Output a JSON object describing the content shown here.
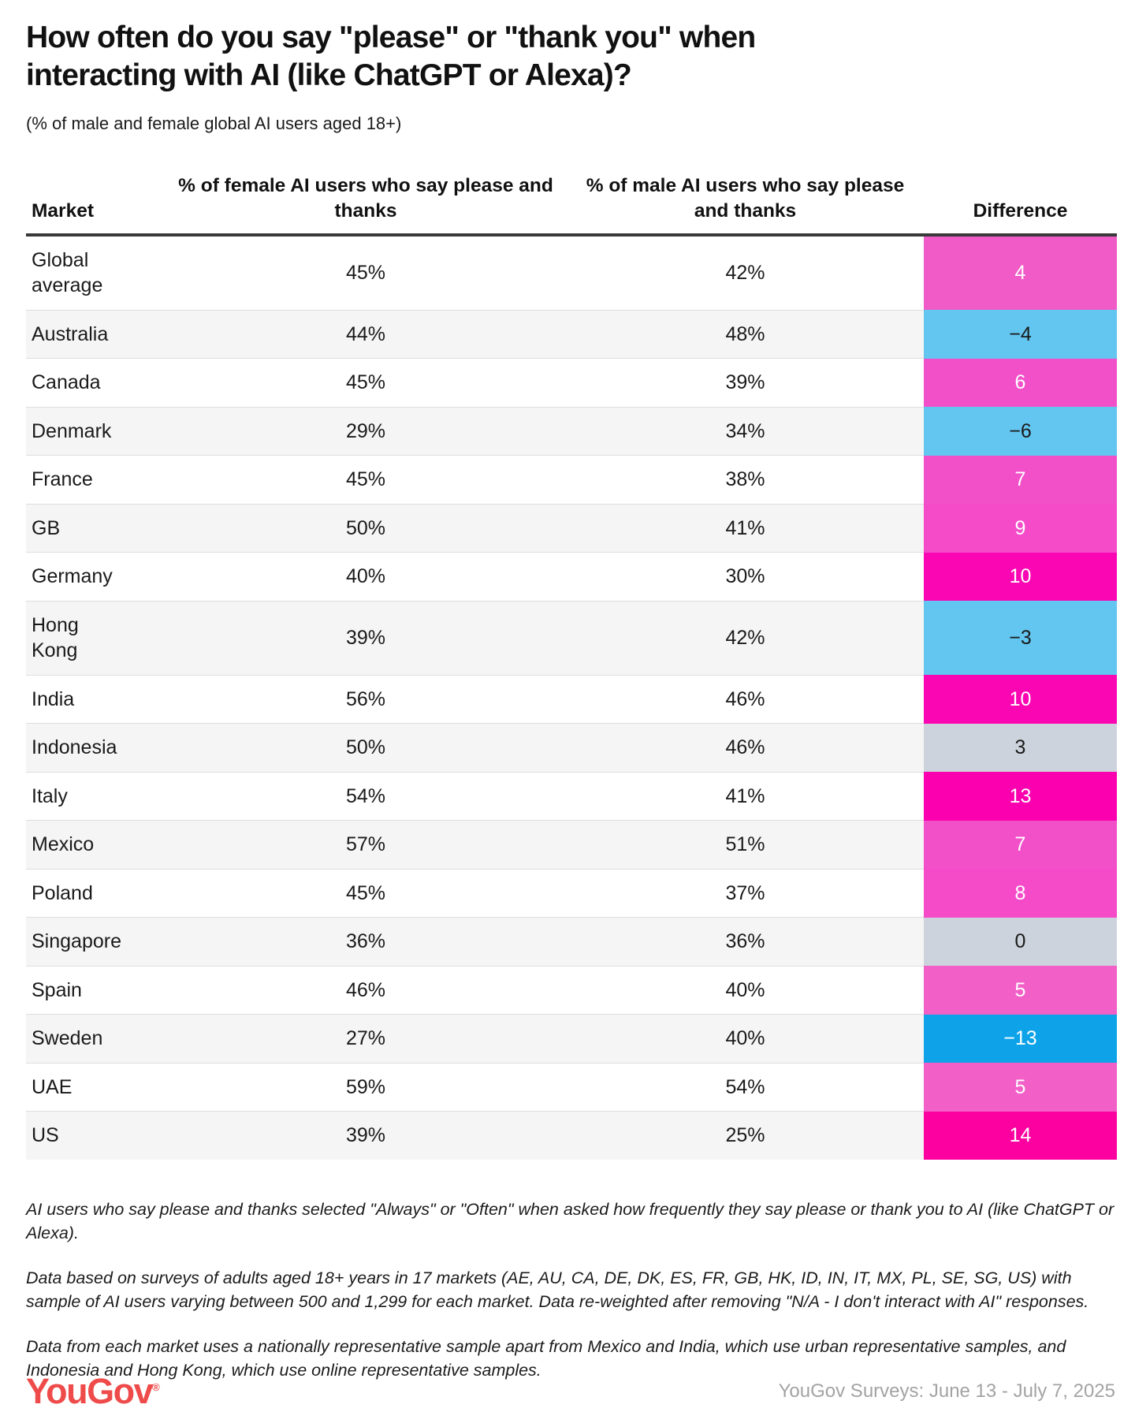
{
  "title": "How often do you say \"please\" or \"thank you\" when interacting with AI (like ChatGPT or Alexa)?",
  "subtitle": "(% of male and female global AI users aged 18+)",
  "table": {
    "columns": {
      "market": "Market",
      "female": "% of female AI users who say please and thanks",
      "male": "% of male AI users who say please and thanks",
      "difference": "Difference"
    },
    "rows": [
      {
        "market": "Global\naverage",
        "female": "45%",
        "male": "42%",
        "difference": "4",
        "diff_bg": "#F15BC7",
        "diff_text": "#FFFFFF"
      },
      {
        "market": "Australia",
        "female": "44%",
        "male": "48%",
        "difference": "−4",
        "diff_bg": "#63C6F1",
        "diff_text": "#1A1A1A"
      },
      {
        "market": "Canada",
        "female": "45%",
        "male": "39%",
        "difference": "6",
        "diff_bg": "#F150C9",
        "diff_text": "#FFFFFF"
      },
      {
        "market": "Denmark",
        "female": "29%",
        "male": "34%",
        "difference": "−6",
        "diff_bg": "#63C6F1",
        "diff_text": "#1A1A1A"
      },
      {
        "market": "France",
        "female": "45%",
        "male": "38%",
        "difference": "7",
        "diff_bg": "#F150C9",
        "diff_text": "#FFFFFF"
      },
      {
        "market": "GB",
        "female": "50%",
        "male": "41%",
        "difference": "9",
        "diff_bg": "#F54BC9",
        "diff_text": "#FFFFFF"
      },
      {
        "market": "Germany",
        "female": "40%",
        "male": "30%",
        "difference": "10",
        "diff_bg": "#FB06B3",
        "diff_text": "#FFFFFF"
      },
      {
        "market": "Hong\nKong",
        "female": "39%",
        "male": "42%",
        "difference": "−3",
        "diff_bg": "#63C6F1",
        "diff_text": "#1A1A1A"
      },
      {
        "market": "India",
        "female": "56%",
        "male": "46%",
        "difference": "10",
        "diff_bg": "#FB06B3",
        "diff_text": "#FFFFFF"
      },
      {
        "market": "Indonesia",
        "female": "50%",
        "male": "46%",
        "difference": "3",
        "diff_bg": "#CDD3DC",
        "diff_text": "#1A1A1A"
      },
      {
        "market": "Italy",
        "female": "54%",
        "male": "41%",
        "difference": "13",
        "diff_bg": "#FB00AF",
        "diff_text": "#FFFFFF"
      },
      {
        "market": "Mexico",
        "female": "57%",
        "male": "51%",
        "difference": "7",
        "diff_bg": "#F150C9",
        "diff_text": "#FFFFFF"
      },
      {
        "market": "Poland",
        "female": "45%",
        "male": "37%",
        "difference": "8",
        "diff_bg": "#F54BC9",
        "diff_text": "#FFFFFF"
      },
      {
        "market": "Singapore",
        "female": "36%",
        "male": "36%",
        "difference": "0",
        "diff_bg": "#CDD3DC",
        "diff_text": "#1A1A1A"
      },
      {
        "market": "Spain",
        "female": "46%",
        "male": "40%",
        "difference": "5",
        "diff_bg": "#F25FC7",
        "diff_text": "#FFFFFF"
      },
      {
        "market": "Sweden",
        "female": "27%",
        "male": "40%",
        "difference": "−13",
        "diff_bg": "#0EA3E9",
        "diff_text": "#FFFFFF"
      },
      {
        "market": "UAE",
        "female": "59%",
        "male": "54%",
        "difference": "5",
        "diff_bg": "#F25FC7",
        "diff_text": "#FFFFFF"
      },
      {
        "market": "US",
        "female": "39%",
        "male": "25%",
        "difference": "14",
        "diff_bg": "#FC00A0",
        "diff_text": "#FFFFFF"
      }
    ]
  },
  "footnotes": [
    "AI users who say please and thanks selected \"Always\" or \"Often\" when asked how frequently they say please or thank you to AI (like ChatGPT or Alexa).",
    "Data based on surveys of adults aged 18+ years in 17 markets (AE, AU, CA, DE, DK, ES, FR, GB, HK, ID, IN, IT, MX, PL, SE, SG, US) with sample of AI users varying between 500 and 1,299 for each market. Data re-weighted after removing \"N/A - I don't interact with AI\" responses.",
    "Data from each market uses a nationally representative sample apart from Mexico and India, which use urban representative samples, and Indonesia and Hong Kong, which use online representative samples."
  ],
  "footer": {
    "logo": "YouGov",
    "logo_mark": "®",
    "source": "YouGov Surveys: June 13 - July 7, 2025"
  },
  "colors": {
    "header_rule": "#39393B",
    "row_alt_bg": "#F5F5F5",
    "row_divider": "#DEDEDE",
    "positive_strong": "#FB06B3",
    "positive_medium": "#F150C9",
    "neutral_gray": "#CDD3DC",
    "negative_light": "#63C6F1",
    "negative_strong": "#0EA3E9",
    "logo_red": "#EE4B4A",
    "source_gray": "#A3A3A3"
  },
  "chart_data": {
    "type": "table",
    "title": "How often do you say \"please\" or \"thank you\" when interacting with AI (like ChatGPT or Alexa)?",
    "subtitle": "(% of male and female global AI users aged 18+)",
    "categories": [
      "Global average",
      "Australia",
      "Canada",
      "Denmark",
      "France",
      "GB",
      "Germany",
      "Hong Kong",
      "India",
      "Indonesia",
      "Italy",
      "Mexico",
      "Poland",
      "Singapore",
      "Spain",
      "Sweden",
      "UAE",
      "US"
    ],
    "series": [
      {
        "name": "% of female AI users who say please and thanks",
        "values": [
          45,
          44,
          45,
          29,
          45,
          50,
          40,
          39,
          56,
          50,
          54,
          57,
          45,
          36,
          46,
          27,
          59,
          39
        ]
      },
      {
        "name": "% of male AI users who say please and thanks",
        "values": [
          42,
          48,
          39,
          34,
          38,
          41,
          30,
          42,
          46,
          46,
          41,
          51,
          37,
          36,
          40,
          40,
          54,
          25
        ]
      },
      {
        "name": "Difference",
        "values": [
          4,
          -4,
          6,
          -6,
          7,
          9,
          10,
          -3,
          10,
          3,
          13,
          7,
          8,
          0,
          5,
          -13,
          5,
          14
        ]
      }
    ],
    "legend_position": "none",
    "grid": false
  }
}
